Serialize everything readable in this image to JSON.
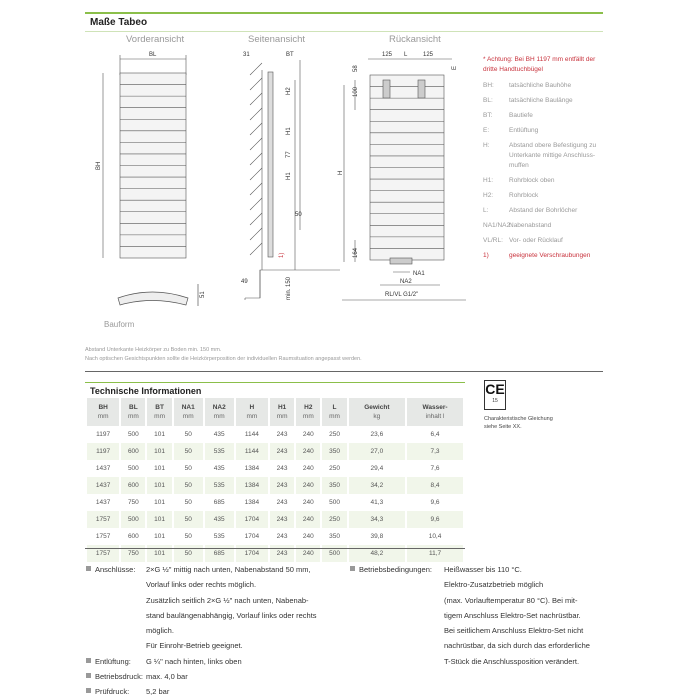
{
  "header": {
    "title": "Maße Tabeo"
  },
  "views": {
    "front": "Vorderansicht",
    "side": "Seitenansicht",
    "rear": "Rückansicht",
    "bauform": "Bauform"
  },
  "dims": {
    "bl": "BL",
    "bh": "BH",
    "bt": "BT",
    "d31": "31",
    "h1": "H1",
    "h2": "H2",
    "d77": "77",
    "d50": "50",
    "d49": "49",
    "min150": "min. 150",
    "d51": "51",
    "d125a": "125",
    "l": "L",
    "d125b": "125",
    "d58": "58",
    "d100": "100",
    "h": "H",
    "e": "E",
    "d164": "164",
    "na1": "NA1",
    "na2": "NA2",
    "rlvl": "RL/VL G1/2\"",
    "one": "1)"
  },
  "legend": {
    "warning": "* Achtung: Bei BH 1197 mm entfällt der dritte Handtuchbügel",
    "items": [
      {
        "k": "BH:",
        "v": "tatsächliche Bauhöhe"
      },
      {
        "k": "BL:",
        "v": "tatsächliche Baulänge"
      },
      {
        "k": "BT:",
        "v": "Bautiefe"
      },
      {
        "k": "E:",
        "v": "Entlüftung"
      },
      {
        "k": "H:",
        "v": "Abstand obere Befestigung zu Unterkante mittige Anschluss-muffen"
      },
      {
        "k": "H1:",
        "v": "Rohrblock oben"
      },
      {
        "k": "H2:",
        "v": "Rohrblock"
      },
      {
        "k": "L:",
        "v": "Abstand der Bohrlöcher"
      },
      {
        "k": "NA1/NA2:",
        "v": "Nabenabstand"
      },
      {
        "k": "VL/RL:",
        "v": "Vor- oder Rücklauf"
      }
    ],
    "footnote": {
      "k": "1)",
      "v": "geeignete Verschraubungen"
    }
  },
  "notes": [
    "Abstand Unterkante Heizkörper zu Boden min. 150 mm.",
    "Nach optischen Gesichtspunkten sollte die Heizkörperposition der individuellen Raumsituation angepasst werden."
  ],
  "tech": {
    "title": "Technische Informationen",
    "headers": [
      [
        "BH",
        "mm"
      ],
      [
        "BL",
        "mm"
      ],
      [
        "BT",
        "mm"
      ],
      [
        "NA1",
        "mm"
      ],
      [
        "NA2",
        "mm"
      ],
      [
        "H",
        "mm"
      ],
      [
        "H1",
        "mm"
      ],
      [
        "H2",
        "mm"
      ],
      [
        "L",
        "mm"
      ],
      [
        "Gewicht",
        "kg"
      ],
      [
        "Wasser-",
        "inhalt l"
      ]
    ],
    "rows": [
      [
        "1197",
        "500",
        "101",
        "50",
        "435",
        "1144",
        "243",
        "240",
        "250",
        "23,6",
        "6,4"
      ],
      [
        "1197",
        "600",
        "101",
        "50",
        "535",
        "1144",
        "243",
        "240",
        "350",
        "27,0",
        "7,3"
      ],
      [
        "1437",
        "500",
        "101",
        "50",
        "435",
        "1384",
        "243",
        "240",
        "250",
        "29,4",
        "7,6"
      ],
      [
        "1437",
        "600",
        "101",
        "50",
        "535",
        "1384",
        "243",
        "240",
        "350",
        "34,2",
        "8,4"
      ],
      [
        "1437",
        "750",
        "101",
        "50",
        "685",
        "1384",
        "243",
        "240",
        "500",
        "41,3",
        "9,6"
      ],
      [
        "1757",
        "500",
        "101",
        "50",
        "435",
        "1704",
        "243",
        "240",
        "250",
        "34,3",
        "9,6"
      ],
      [
        "1757",
        "600",
        "101",
        "50",
        "535",
        "1704",
        "243",
        "240",
        "350",
        "39,8",
        "10,4"
      ],
      [
        "1757",
        "750",
        "101",
        "50",
        "685",
        "1704",
        "243",
        "240",
        "500",
        "48,2",
        "11,7"
      ]
    ]
  },
  "ce": {
    "mark": "CE",
    "number": "15",
    "text1": "Charakteristische Gleichung",
    "text2": "siehe Seite XX."
  },
  "specs_left": [
    {
      "k": "Anschlüsse:",
      "lines": [
        "2×G ½\" mittig nach unten, Nabenabstand 50 mm,",
        "Vorlauf links oder rechts möglich.",
        "Zusätzlich seitlich 2×G ½\" nach unten, Nabenab-",
        "stand baulängenabhängig, Vorlauf links oder rechts",
        "möglich.",
        "Für Einrohr-Betrieb geeignet."
      ]
    },
    {
      "k": "Entlüftung:",
      "lines": [
        "G ¼\" nach hinten, links oben"
      ]
    },
    {
      "k": "Betriebsdruck:",
      "lines": [
        "max. 4,0 bar"
      ]
    },
    {
      "k": "Prüfdruck:",
      "lines": [
        "5,2 bar"
      ]
    }
  ],
  "specs_right": {
    "k": "Betriebsbedingungen:",
    "lines": [
      "Heißwasser bis 110 °C.",
      "Elektro-Zusatzbetrieb möglich",
      "(max. Vorlauftemperatur 80 °C). Bei mit-",
      "tigem Anschluss Elektro-Set nachrüstbar.",
      "Bei seitlichem Anschluss Elektro-Set nicht",
      "nachrüstbar, da sich durch das erforderliche",
      "T-Stück die Anschlussposition verändert."
    ]
  },
  "colors": {
    "accent": "#8bbf4a",
    "warning": "#c8323c",
    "row_alt": "#f1f6ea",
    "header_bg": "#e6e8e6"
  }
}
